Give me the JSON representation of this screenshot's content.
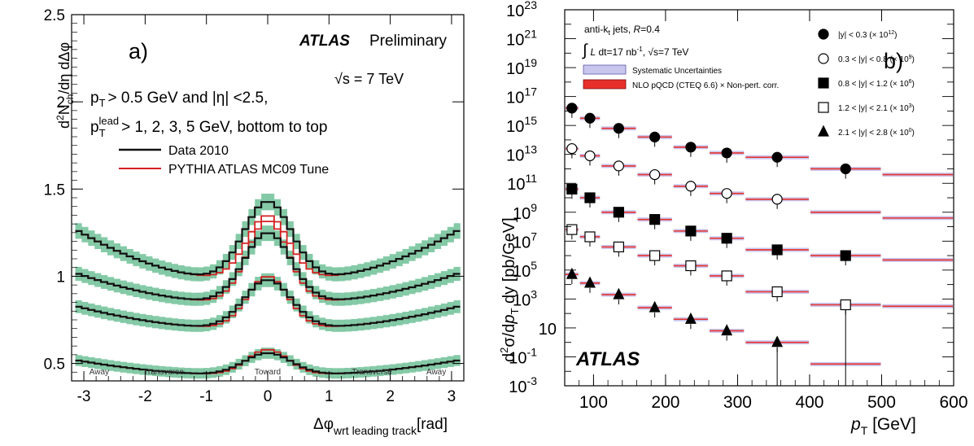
{
  "chart_data": [
    {
      "type": "line",
      "panel_label": "a)",
      "title_atlas": "ATLAS",
      "title_prelim": "Preliminary",
      "energy": "√s = 7 TeV",
      "cuts_line1": "p_T > 0.5 GeV and |η| < 2.5,",
      "cuts_line1_parts": [
        "p",
        "T",
        "> 0.5  GeV and |η| <2.5,"
      ],
      "cuts_line2_parts": [
        "p",
        "T",
        "lead",
        "> 1, 2, 3, 5 GeV, bottom to top"
      ],
      "ylabel": "d²N_ch/dη dΔφ",
      "ylabel_parts": [
        "d",
        "2",
        "N",
        "ch",
        "/dη dΔφ"
      ],
      "xlabel_parts": [
        "Δφ",
        "wrt leading track",
        "[rad]"
      ],
      "xlim": [
        -3.2,
        3.2
      ],
      "ylim": [
        0.4,
        2.5
      ],
      "xticks": [
        -3,
        -2,
        -1,
        0,
        1,
        2,
        3
      ],
      "xtick_labels": [
        "-3",
        "-2",
        "-1",
        "0",
        "1",
        "2",
        "3"
      ],
      "yticks": [
        0.5,
        1,
        1.5,
        2,
        2.5
      ],
      "ytick_labels": [
        "0.5",
        "1",
        "1.5",
        "2",
        "2.5"
      ],
      "region_labels": [
        {
          "text": "Away",
          "x": -2.75
        },
        {
          "text": "Transverse",
          "x": -1.7
        },
        {
          "text": "Toward",
          "x": 0
        },
        {
          "text": "Transverse",
          "x": 1.7
        },
        {
          "text": "Away",
          "x": 2.75
        }
      ],
      "legend": [
        {
          "name": "Data 2010",
          "color": "#111111"
        },
        {
          "name": "PYTHIA ATLAS MC09 Tune",
          "color": "#d42020"
        }
      ],
      "band_color": "#5cb88a",
      "series": [
        {
          "name": "p_T^lead > 1 GeV",
          "away": 0.52,
          "trans": 0.44,
          "peak": 0.56,
          "mc_peak": 0.58
        },
        {
          "name": "p_T^lead > 2 GeV",
          "away": 0.83,
          "trans": 0.71,
          "peak": 0.98,
          "mc_peak": 1.0
        },
        {
          "name": "p_T^lead > 3 GeV",
          "away": 1.02,
          "trans": 0.86,
          "peak": 1.25,
          "mc_peak": 1.32
        },
        {
          "name": "p_T^lead > 5 GeV",
          "away": 1.27,
          "trans": 1.0,
          "peak": 1.43,
          "mc_peak": 1.35
        }
      ]
    },
    {
      "type": "scatter",
      "panel_label": "b)",
      "log_y": true,
      "xlim": [
        60,
        600
      ],
      "ylim_exp": [
        -3,
        23
      ],
      "xticks": [
        100,
        200,
        300,
        400,
        500,
        600
      ],
      "xtick_labels": [
        "100",
        "200",
        "300",
        "400",
        "500",
        "600"
      ],
      "ytick_exps": [
        -3,
        -1,
        1,
        3,
        5,
        7,
        9,
        11,
        13,
        15,
        17,
        19,
        21,
        23
      ],
      "ytick_labels": [
        "10",
        "10",
        "10",
        "10",
        "10",
        "10",
        "10",
        "10",
        "10",
        "10",
        "10",
        "10",
        "10",
        "10"
      ],
      "ytick_sups": [
        "-3",
        "-1",
        "",
        "3",
        "5",
        "7",
        "9",
        "11",
        "13",
        "15",
        "17",
        "19",
        "21",
        "23"
      ],
      "ylabel": "d²σ/dp_T dy [pb/GeV]",
      "ylabel_parts": [
        "d",
        "2",
        "σ/d",
        "p",
        "T",
        " dy [pb/GeV]"
      ],
      "xlabel_parts": [
        "p",
        "T",
        " [GeV]"
      ],
      "info_line1": "anti-k_t jets, R=0.4",
      "info_line1_parts": [
        "anti-k",
        "t",
        " jets, ",
        "R",
        "=0.4"
      ],
      "info_line2": "∫ L dt=17 nb⁻¹, √s=7 TeV",
      "info_line2_parts": [
        "∫",
        "L",
        " dt=17 nb",
        "-1",
        ", √s=7 TeV"
      ],
      "atlas_label": "ATLAS",
      "legend_boxes": [
        {
          "name": "Systematic Uncertainties",
          "color": "#c9c6ee"
        },
        {
          "name": "NLO pQCD (CTEQ 6.6) × Non-pert. corr.",
          "color": "#e8302b"
        }
      ],
      "legend_markers": [
        {
          "name": "|y| < 0.3 (× 10¹²)",
          "text": "|y| < 0.3 (× 10",
          "sup": "12",
          "marker": "circle-filled"
        },
        {
          "name": "0.3 < |y| < 0.8 (× 10⁹)",
          "text": "0.3 < |y| < 0.8 (× 10",
          "sup": "9",
          "marker": "circle-open"
        },
        {
          "name": "0.8 < |y| < 1.2 (× 10⁶)",
          "text": "0.8 < |y| < 1.2 (× 10",
          "sup": "6",
          "marker": "square-filled"
        },
        {
          "name": "1.2 < |y| < 2.1 (× 10³)",
          "text": "1.2 < |y| < 2.1 (× 10",
          "sup": "3",
          "marker": "square-open"
        },
        {
          "name": "2.1 < |y| < 2.8 (× 10⁰)",
          "text": "2.1 < |y| < 2.8 (× 10",
          "sup": "0",
          "marker": "triangle-filled"
        }
      ],
      "bins": [
        60,
        80,
        110,
        160,
        210,
        260,
        310,
        400,
        500,
        600
      ],
      "series": [
        {
          "name": "|y| < 0.3",
          "marker": "circle-filled",
          "x": [
            70,
            95,
            135,
            185,
            235,
            285,
            355,
            450
          ],
          "log10_y": [
            16.2,
            15.5,
            14.8,
            14.2,
            13.5,
            13.1,
            12.8,
            12.0
          ],
          "nlo_log10": [
            16.2,
            15.5,
            14.8,
            14.2,
            13.5,
            13.1,
            12.8,
            12.0,
            11.6
          ]
        },
        {
          "name": "0.3 < |y| < 0.8",
          "marker": "circle-open",
          "x": [
            70,
            95,
            135,
            185,
            235,
            285,
            355
          ],
          "log10_y": [
            13.4,
            12.9,
            12.2,
            11.6,
            10.8,
            10.3,
            9.9
          ],
          "nlo_log10": [
            13.4,
            12.9,
            12.2,
            11.6,
            10.8,
            10.3,
            9.9,
            9.0,
            8.6
          ]
        },
        {
          "name": "0.8 < |y| < 1.2",
          "marker": "square-filled",
          "x": [
            70,
            95,
            135,
            185,
            235,
            285,
            355,
            450
          ],
          "log10_y": [
            10.6,
            10.0,
            9.0,
            8.5,
            7.7,
            7.2,
            6.4,
            6.0
          ],
          "nlo_log10": [
            10.6,
            10.0,
            9.0,
            8.5,
            7.7,
            7.2,
            6.4,
            6.0,
            5.7
          ]
        },
        {
          "name": "1.2 < |y| < 2.1",
          "marker": "square-open",
          "x": [
            70,
            95,
            135,
            185,
            235,
            285,
            355,
            450
          ],
          "log10_y": [
            7.8,
            7.3,
            6.6,
            6.0,
            5.3,
            4.6,
            3.5,
            2.6
          ],
          "nlo_log10": [
            7.8,
            7.3,
            6.6,
            6.0,
            5.3,
            4.6,
            3.5,
            2.6,
            2.5
          ]
        },
        {
          "name": "2.1 < |y| < 2.8",
          "marker": "triangle-filled",
          "x": [
            70,
            95,
            135,
            185,
            235,
            285,
            355
          ],
          "log10_y": [
            4.7,
            4.1,
            3.3,
            2.4,
            1.6,
            0.8,
            0.0
          ],
          "nlo_log10": [
            4.7,
            4.1,
            3.3,
            2.4,
            1.6,
            0.8,
            0.0,
            -1.5
          ]
        }
      ]
    }
  ]
}
